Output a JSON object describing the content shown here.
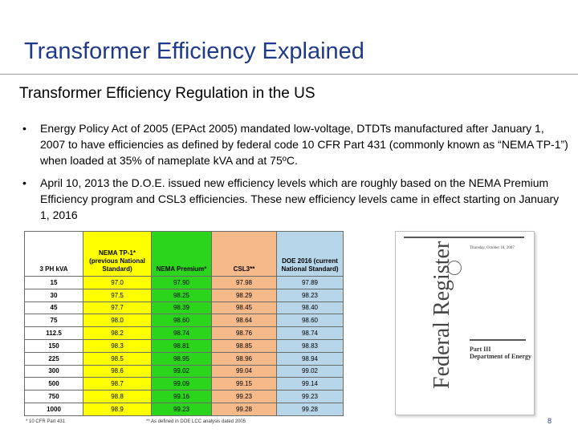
{
  "header": {
    "title": "Transformer Efficiency Explained"
  },
  "subtitle": "Transformer Efficiency Regulation in the US",
  "bullets": [
    {
      "text": "Energy Policy Act of 2005  (EPAct 2005) mandated low-voltage, DTDTs manufactured after January 1, 2007 to have efficiencies as defined by federal code 10 CFR Part 431 (commonly known as “NEMA TP-1”) when loaded at 35% of nameplate kVA and at 75ºC."
    },
    {
      "text": "April 10, 2013 the D.O.E. issued new efficiency levels which are roughly based on the NEMA Premium Efficiency program and CSL3 efficiencies.  These new efficiency levels came in effect starting on January 1, 2016"
    }
  ],
  "table": {
    "headers": [
      "3 PH kVA",
      "NEMA TP-1* (previous National Standard)",
      "NEMA Premium*",
      "CSL3**",
      "DOE 2016 (current National Standard)"
    ],
    "rows": [
      [
        "15",
        "97.0",
        "97.90",
        "97.98",
        "97.89"
      ],
      [
        "30",
        "97.5",
        "98.25",
        "98.29",
        "98.23"
      ],
      [
        "45",
        "97.7",
        "98.39",
        "98.45",
        "98.40"
      ],
      [
        "75",
        "98.0",
        "98.60",
        "98.64",
        "98.60"
      ],
      [
        "112.5",
        "98.2",
        "98.74",
        "98.76",
        "98.74"
      ],
      [
        "150",
        "98.3",
        "98.81",
        "98.85",
        "98.83"
      ],
      [
        "225",
        "98.5",
        "98.95",
        "98.96",
        "98.94"
      ],
      [
        "300",
        "98.6",
        "99.02",
        "99.04",
        "99.02"
      ],
      [
        "500",
        "98.7",
        "99.09",
        "99.15",
        "99.14"
      ],
      [
        "750",
        "98.8",
        "99.16",
        "99.23",
        "99.23"
      ],
      [
        "1000",
        "98.9",
        "99.23",
        "99.28",
        "99.28"
      ]
    ],
    "footnote_1": "* 10 CFR Part 431",
    "footnote_2": "** As defined in DOE LCC analysis dated 2005"
  },
  "document_image": {
    "masthead": "Federal Register",
    "date": "Thursday, October 18, 2007",
    "part": "Part III",
    "department": "Department of Energy"
  },
  "page_number": "8",
  "colors": {
    "title": "#1f3a8a",
    "tp1": "#ffff00",
    "premium": "#2bd51c",
    "csl3": "#f5b98a",
    "doe2016": "#b8d6ea"
  }
}
